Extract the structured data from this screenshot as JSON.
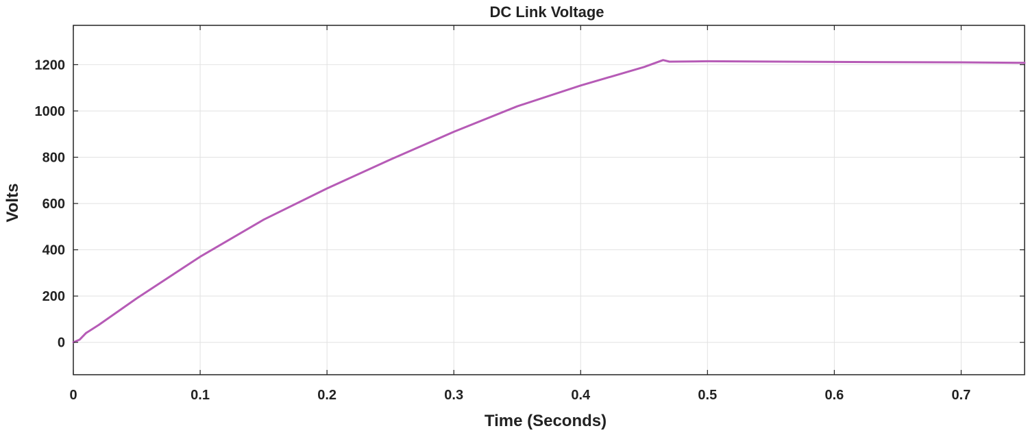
{
  "chart_data": {
    "type": "line",
    "title": "DC Link Voltage",
    "xlabel": "Time (Seconds)",
    "ylabel": "Volts",
    "xlim": [
      0,
      0.75
    ],
    "ylim": [
      -140,
      1370
    ],
    "xticks": [
      0,
      0.1,
      0.2,
      0.3,
      0.4,
      0.5,
      0.6,
      0.7
    ],
    "xtick_labels": [
      "0",
      "0.1",
      "0.2",
      "0.3",
      "0.4",
      "0.5",
      "0.6",
      "0.7"
    ],
    "yticks": [
      0,
      200,
      400,
      600,
      800,
      1000,
      1200
    ],
    "ytick_labels": [
      "0",
      "200",
      "400",
      "600",
      "800",
      "1000",
      "1200"
    ],
    "grid": true,
    "colors": {
      "line": "#b65bb6",
      "grid": "#e2e2e2",
      "axes": "#222222"
    },
    "series": [
      {
        "x": [
          0,
          0.005,
          0.01,
          0.02,
          0.05,
          0.1,
          0.15,
          0.2,
          0.25,
          0.3,
          0.35,
          0.4,
          0.45,
          0.465,
          0.47,
          0.5,
          0.6,
          0.7,
          0.75
        ],
        "y": [
          0,
          12,
          40,
          75,
          190,
          370,
          530,
          665,
          790,
          910,
          1020,
          1110,
          1190,
          1220,
          1213,
          1215,
          1212,
          1210,
          1208
        ]
      }
    ]
  }
}
